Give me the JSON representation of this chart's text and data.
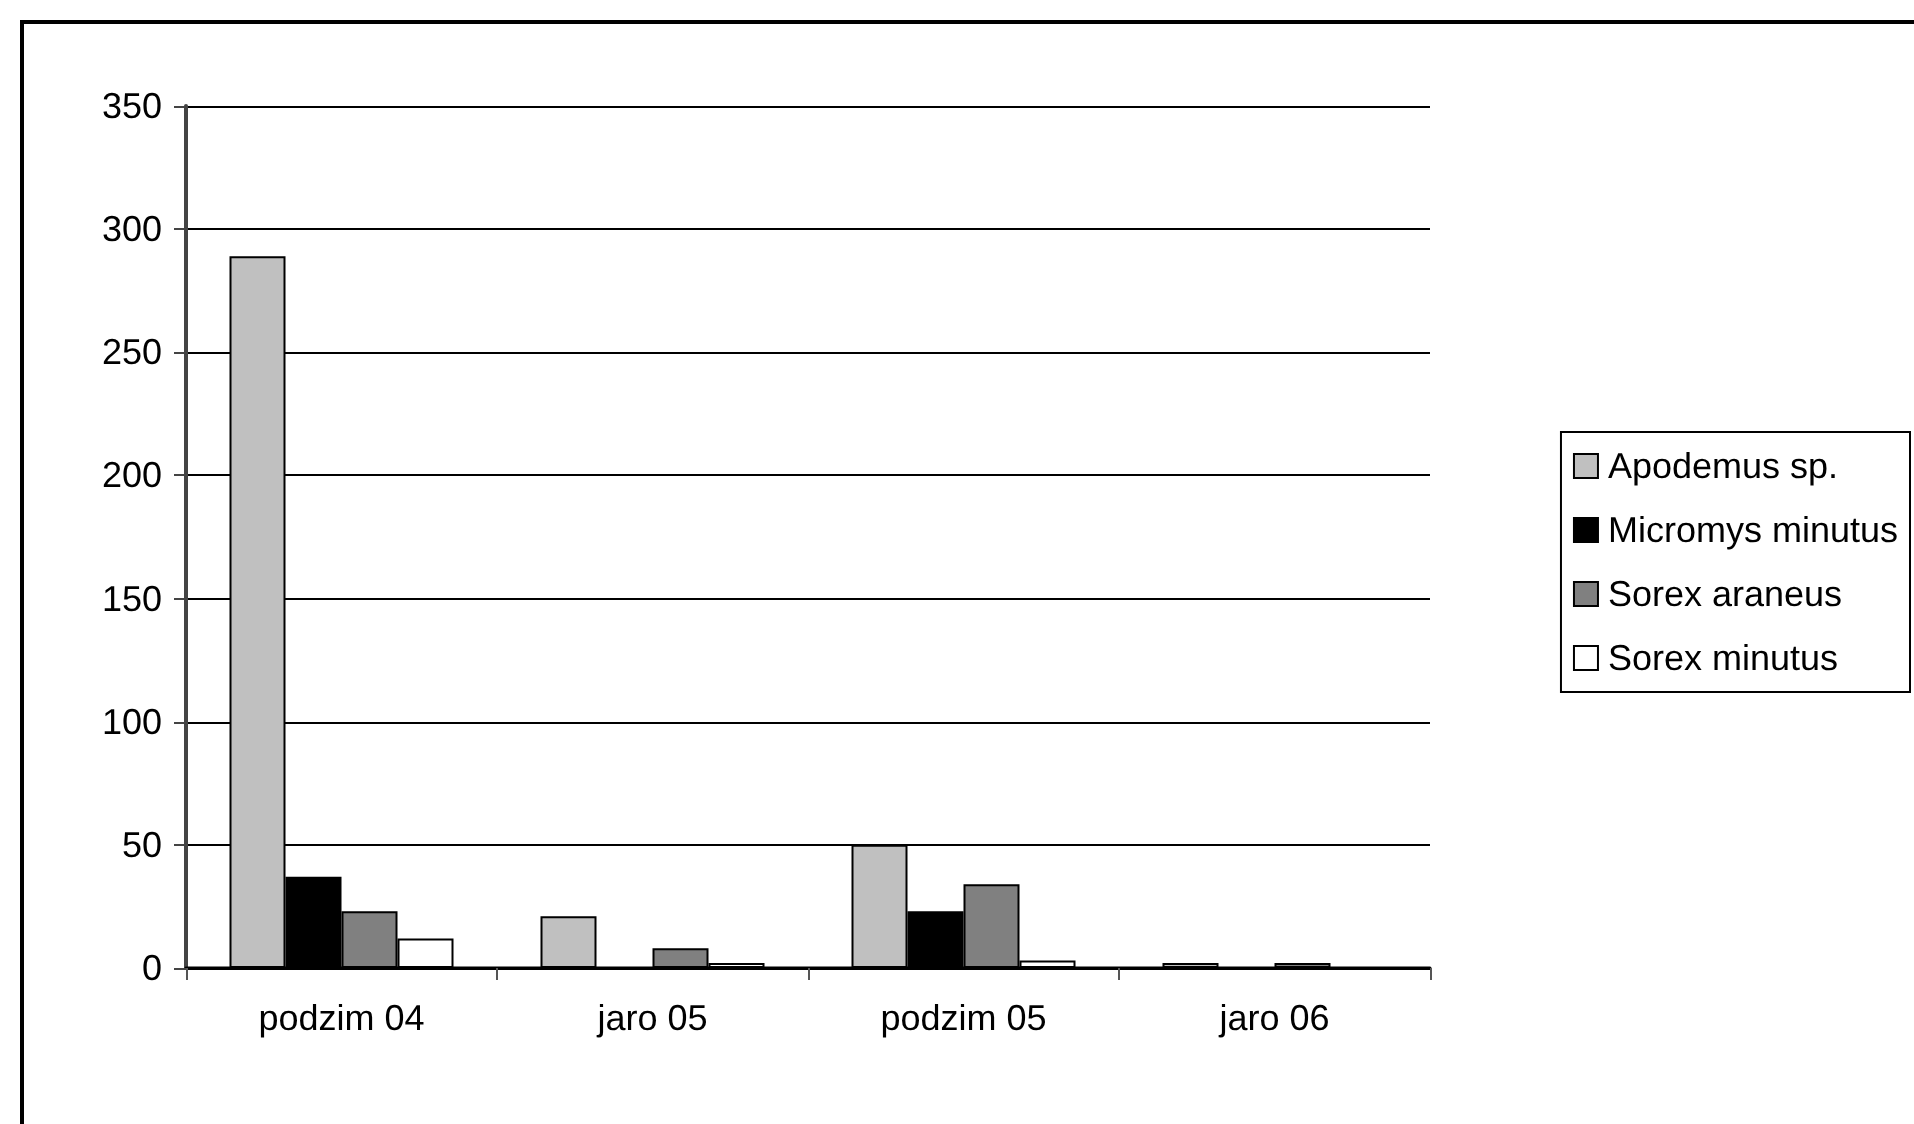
{
  "chart_data": {
    "type": "bar",
    "categories": [
      "podzim 04",
      "jaro 05",
      "podzim 05",
      "jaro 06"
    ],
    "series": [
      {
        "name": "Apodemus sp.",
        "color": "#c0c0c0",
        "values": [
          289,
          21,
          50,
          2
        ]
      },
      {
        "name": "Micromys minutus",
        "color": "#000000",
        "values": [
          37,
          null,
          23,
          null
        ]
      },
      {
        "name": "Sorex araneus",
        "color": "#808080",
        "values": [
          23,
          8,
          34,
          2
        ]
      },
      {
        "name": "Sorex minutus",
        "color": "#ffffff",
        "values": [
          12,
          2,
          3,
          null
        ]
      }
    ],
    "ylim": [
      0,
      350
    ],
    "yticks": [
      0,
      50,
      100,
      150,
      200,
      250,
      300,
      350
    ],
    "grid": "y",
    "legend": "right"
  }
}
